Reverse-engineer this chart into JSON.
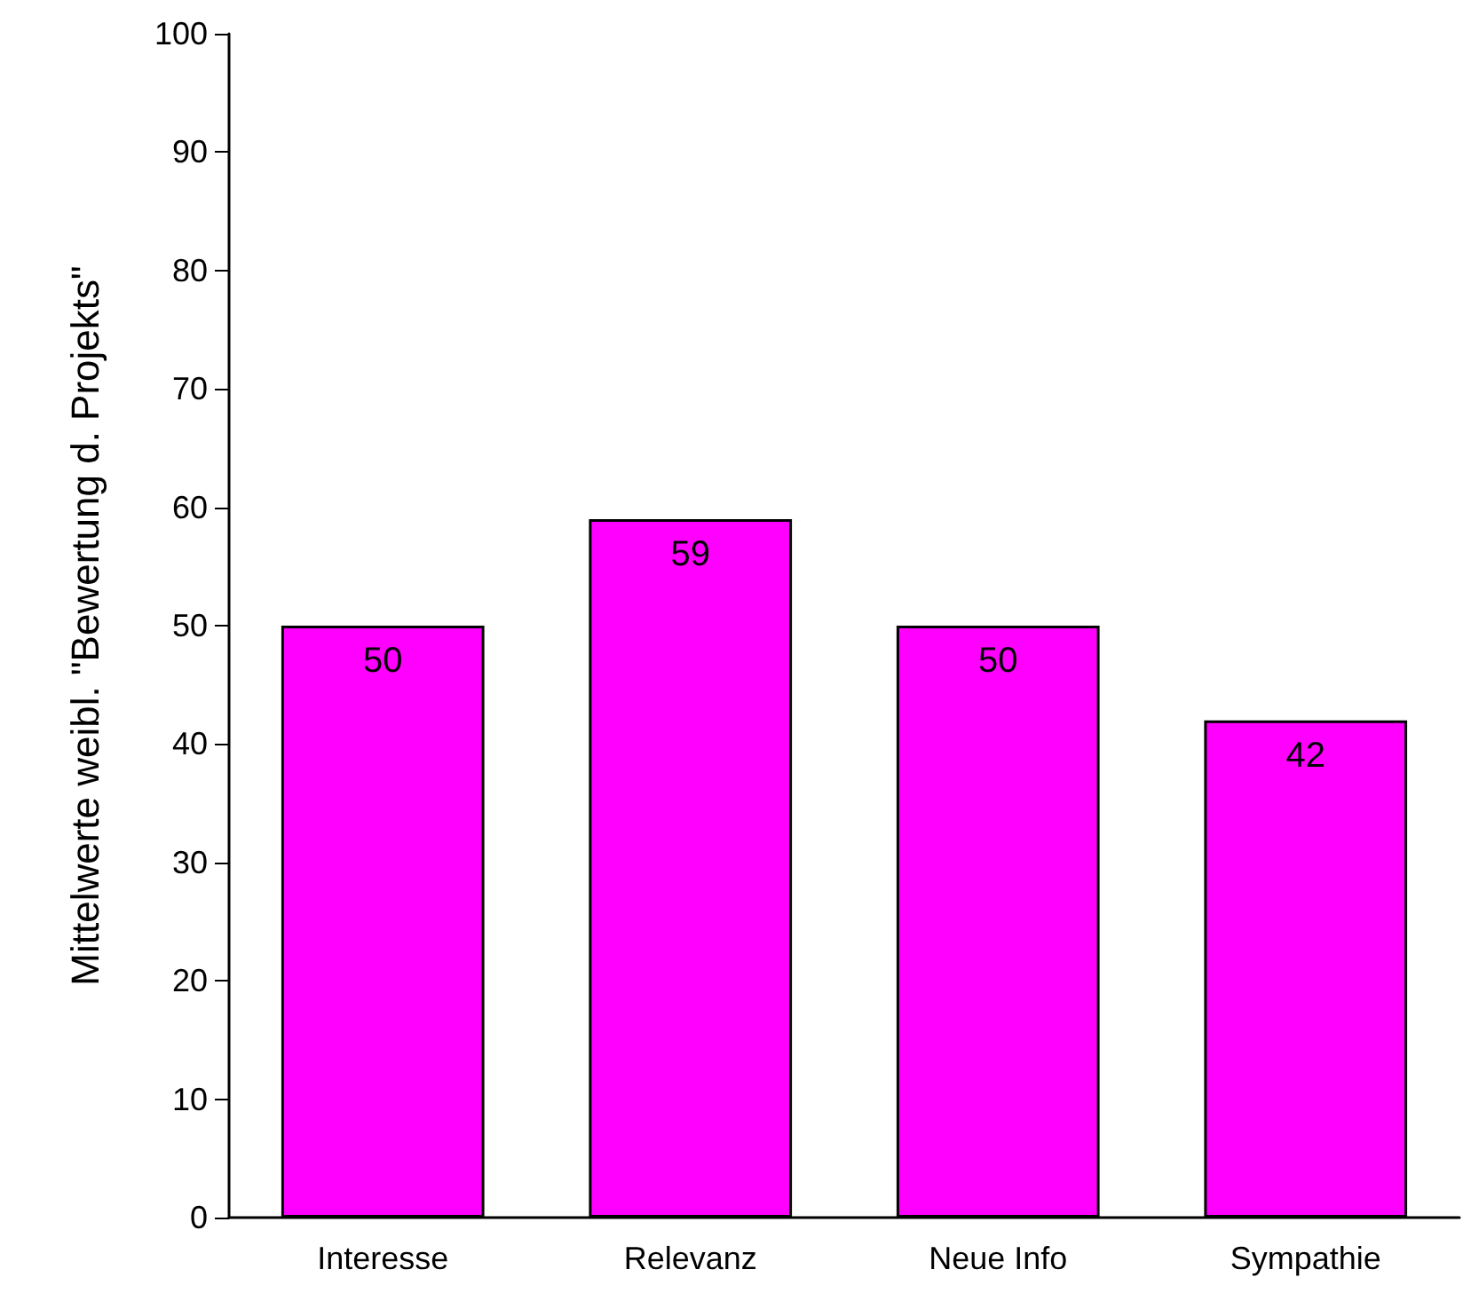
{
  "chart_data": {
    "type": "bar",
    "ylabel": "Mittelwerte weibl. \"Bewertung d. Projekts\"",
    "categories": [
      "Interesse",
      "Relevanz",
      "Neue Info",
      "Sympathie"
    ],
    "values": [
      50,
      59,
      50,
      42
    ],
    "color": "#ff00ff",
    "ylim": [
      0,
      100
    ],
    "yticks": [
      0,
      10,
      20,
      30,
      40,
      50,
      60,
      70,
      80,
      90,
      100
    ],
    "grid": false,
    "data_labels": true
  }
}
